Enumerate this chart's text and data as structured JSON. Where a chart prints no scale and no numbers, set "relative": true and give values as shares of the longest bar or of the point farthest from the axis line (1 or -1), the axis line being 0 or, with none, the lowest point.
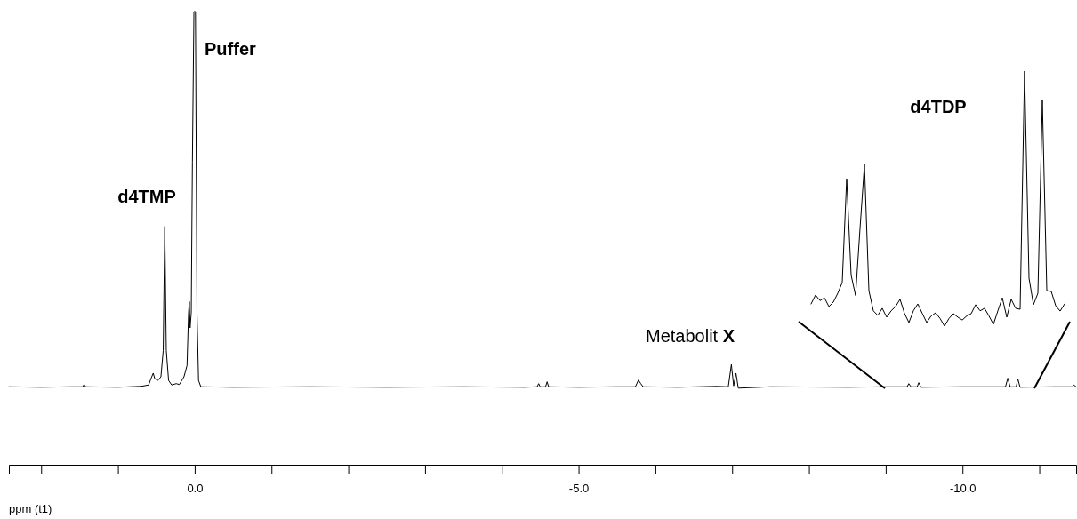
{
  "chart_data": [
    {
      "type": "line",
      "relative": true,
      "xlabel": "ppm (t1)",
      "xlim": [
        2.42,
        -11.48
      ],
      "xticks": [
        {
          "value": 2,
          "label": null
        },
        {
          "value": 1,
          "label": null
        },
        {
          "value": 0,
          "label": "0.0"
        },
        {
          "value": -1,
          "label": null
        },
        {
          "value": -2,
          "label": null
        },
        {
          "value": -3,
          "label": null
        },
        {
          "value": -4,
          "label": null
        },
        {
          "value": -5,
          "label": "-5.0"
        },
        {
          "value": -6,
          "label": null
        },
        {
          "value": -7,
          "label": null
        },
        {
          "value": -8,
          "label": null
        },
        {
          "value": -9,
          "label": null
        },
        {
          "value": -10,
          "label": "-10.0"
        },
        {
          "value": -11,
          "label": null
        }
      ],
      "annotations": [
        "d4TMP",
        "Puffer",
        "Metabolit X"
      ],
      "series": [
        {
          "color": "#000000",
          "x": [
            2.42,
            2.0,
            1.6,
            1.46,
            1.44,
            1.42,
            1.0,
            0.7,
            0.6,
            0.56,
            0.54,
            0.52,
            0.48,
            0.44,
            0.41,
            0.39,
            0.37,
            0.34,
            0.3,
            0.24,
            0.2,
            0.14,
            0.1,
            0.08,
            0.07,
            0.06,
            0.045,
            0.03,
            0.01,
            -0.01,
            -0.03,
            -0.05,
            -0.08,
            -0.5,
            -1.5,
            -2.5,
            -3.5,
            -4.3,
            -4.46,
            -4.48,
            -4.5,
            -4.57,
            -4.59,
            -4.61,
            -5.0,
            -5.5,
            -5.74,
            -5.78,
            -5.81,
            -5.84,
            -6.3,
            -6.8,
            -6.95,
            -6.99,
            -7.02,
            -7.05,
            -7.08,
            -7.5,
            -8.5,
            -9.0,
            -9.28,
            -9.3,
            -9.33,
            -9.41,
            -9.43,
            -9.46,
            -10.0,
            -10.56,
            -10.59,
            -10.62,
            -10.7,
            -10.72,
            -10.75,
            -11.2,
            -11.43,
            -11.45,
            -11.48
          ],
          "values": [
            0.172,
            0.171,
            0.172,
            0.172,
            0.177,
            0.172,
            0.171,
            0.173,
            0.176,
            0.194,
            0.202,
            0.19,
            0.186,
            0.194,
            0.252,
            0.526,
            0.252,
            0.186,
            0.176,
            0.179,
            0.177,
            0.194,
            0.219,
            0.335,
            0.36,
            0.302,
            0.335,
            0.668,
            1.0,
            1.0,
            0.335,
            0.186,
            0.172,
            0.171,
            0.172,
            0.171,
            0.172,
            0.171,
            0.172,
            0.179,
            0.172,
            0.172,
            0.183,
            0.172,
            0.171,
            0.172,
            0.172,
            0.187,
            0.179,
            0.172,
            0.171,
            0.173,
            0.172,
            0.221,
            0.174,
            0.202,
            0.169,
            0.172,
            0.171,
            0.172,
            0.172,
            0.179,
            0.172,
            0.172,
            0.181,
            0.171,
            0.172,
            0.172,
            0.191,
            0.172,
            0.172,
            0.19,
            0.171,
            0.172,
            0.172,
            0.176,
            0.172
          ]
        }
      ]
    },
    {
      "type": "line",
      "relative": true,
      "categories": [
        null,
        null,
        null,
        null,
        null,
        null,
        null,
        null,
        null,
        null,
        null,
        null,
        null,
        null,
        null,
        null,
        null,
        null,
        null,
        null,
        null,
        null,
        null,
        null,
        null,
        null,
        null,
        null,
        null,
        null,
        null,
        null,
        null,
        null,
        null,
        null,
        null,
        null,
        null,
        null,
        null,
        null,
        null,
        null,
        null,
        null,
        null,
        null,
        null,
        null,
        null,
        null,
        null,
        null,
        null,
        null,
        null,
        null
      ],
      "annotations": [
        "d4TDP"
      ],
      "series": [
        {
          "color": "#000000",
          "values": [
            0.087,
            0.122,
            0.1,
            0.111,
            0.077,
            0.094,
            0.129,
            0.171,
            0.578,
            0.2,
            0.12,
            0.383,
            0.634,
            0.139,
            0.06,
            0.042,
            0.07,
            0.035,
            0.06,
            0.077,
            0.105,
            0.05,
            0.014,
            0.06,
            0.087,
            0.05,
            0.014,
            0.04,
            0.052,
            0.03,
            0,
            0.03,
            0.049,
            0.035,
            0.024,
            0.04,
            0.049,
            0.084,
            0.06,
            0.07,
            0.04,
            0.007,
            0.06,
            0.111,
            0.035,
            0.105,
            0.07,
            0.066,
            1.0,
            0.188,
            0.084,
            0.129,
            0.885,
            0.139,
            0.136,
            0.08,
            0.059,
            0.087
          ]
        }
      ]
    }
  ]
}
